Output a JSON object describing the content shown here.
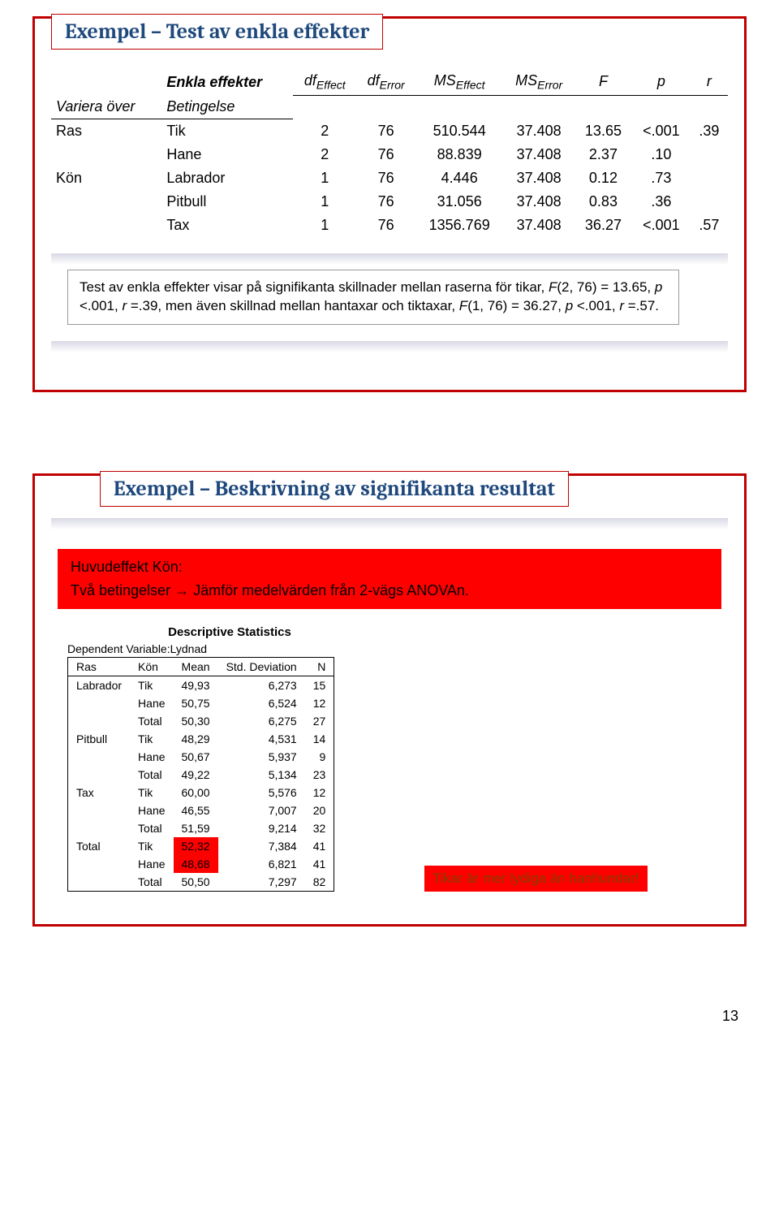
{
  "slide1": {
    "title": "Exempel – Test av enkla effekter",
    "header_main": "Enkla effekter",
    "header_sub1": "Variera över",
    "header_sub2": "Betingelse",
    "cols": {
      "c1": "df",
      "c1s": "Effect",
      "c2": "df",
      "c2s": "Error",
      "c3": "MS",
      "c3s": "Effect",
      "c4": "MS",
      "c4s": "Error",
      "c5": "F",
      "c6": "p",
      "c7": "r"
    },
    "rows": [
      {
        "g": "Ras",
        "b": "Tik",
        "v": [
          "2",
          "76",
          "510.544",
          "37.408",
          "13.65",
          "<.001",
          ".39"
        ]
      },
      {
        "g": "",
        "b": "Hane",
        "v": [
          "2",
          "76",
          "88.839",
          "37.408",
          "2.37",
          ".10",
          ""
        ]
      },
      {
        "g": "Kön",
        "b": "Labrador",
        "v": [
          "1",
          "76",
          "4.446",
          "37.408",
          "0.12",
          ".73",
          ""
        ]
      },
      {
        "g": "",
        "b": "Pitbull",
        "v": [
          "1",
          "76",
          "31.056",
          "37.408",
          "0.83",
          ".36",
          ""
        ]
      },
      {
        "g": "",
        "b": "Tax",
        "v": [
          "1",
          "76",
          "1356.769",
          "37.408",
          "36.27",
          "<.001",
          ".57"
        ]
      }
    ],
    "note": "Test av enkla effekter visar på signifikanta skillnader mellan raserna för tikar, F(2, 76) = 13.65, p <.001, r =.39, men även skillnad mellan hantaxar och tiktaxar, F(1, 76) = 36.27, p <.001, r =.57."
  },
  "slide2": {
    "title": "Exempel – Beskrivning av signifikanta resultat",
    "banner_hd": "Huvudeffekt Kön:",
    "banner_tx": "Två betingelser → Jämför medelvärden från 2-vägs ANOVAn.",
    "stats_title": "Descriptive Statistics",
    "stats_sub": "Dependent Variable:Lydnad",
    "cols": [
      "Ras",
      "Kön",
      "Mean",
      "Std. Deviation",
      "N"
    ],
    "rows": [
      [
        "Labrador",
        "Tik",
        "49,93",
        "6,273",
        "15"
      ],
      [
        "",
        "Hane",
        "50,75",
        "6,524",
        "12"
      ],
      [
        "",
        "Total",
        "50,30",
        "6,275",
        "27"
      ],
      [
        "Pitbull",
        "Tik",
        "48,29",
        "4,531",
        "14"
      ],
      [
        "",
        "Hane",
        "50,67",
        "5,937",
        "9"
      ],
      [
        "",
        "Total",
        "49,22",
        "5,134",
        "23"
      ],
      [
        "Tax",
        "Tik",
        "60,00",
        "5,576",
        "12"
      ],
      [
        "",
        "Hane",
        "46,55",
        "7,007",
        "20"
      ],
      [
        "",
        "Total",
        "51,59",
        "9,214",
        "32"
      ],
      [
        "Total",
        "Tik",
        "52,32",
        "7,384",
        "41"
      ],
      [
        "",
        "Hane",
        "48,68",
        "6,821",
        "41"
      ],
      [
        "",
        "Total",
        "50,50",
        "7,297",
        "82"
      ]
    ],
    "callout": "Tikar är mer lydiga än hanhundar!"
  },
  "pagenum": "13"
}
